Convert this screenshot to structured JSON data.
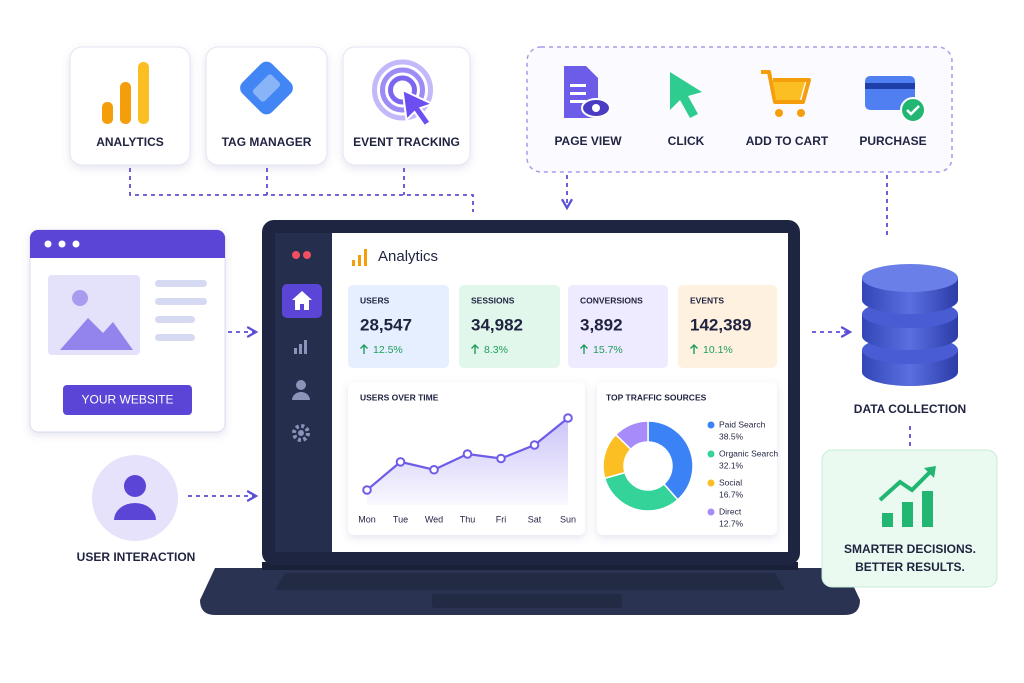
{
  "top_tools": [
    {
      "label": "ANALYTICS"
    },
    {
      "label": "TAG MANAGER"
    },
    {
      "label": "EVENT TRACKING"
    }
  ],
  "events": [
    {
      "label": "PAGE VIEW"
    },
    {
      "label": "CLICK"
    },
    {
      "label": "ADD TO CART"
    },
    {
      "label": "PURCHASE"
    }
  ],
  "website": {
    "button": "YOUR WEBSITE"
  },
  "user": {
    "label": "USER INTERACTION"
  },
  "dashboard": {
    "title": "Analytics",
    "kpis": [
      {
        "label": "USERS",
        "value": "28,547",
        "change": "12.5%"
      },
      {
        "label": "SESSIONS",
        "value": "34,982",
        "change": "8.3%"
      },
      {
        "label": "CONVERSIONS",
        "value": "3,892",
        "change": "15.7%"
      },
      {
        "label": "EVENTS",
        "value": "142,389",
        "change": "10.1%"
      }
    ],
    "users_over_time": {
      "title": "USERS OVER TIME",
      "days": [
        "Mon",
        "Tue",
        "Wed",
        "Thu",
        "Fri",
        "Sat",
        "Sun"
      ],
      "values": [
        20,
        45,
        38,
        52,
        48,
        60,
        84
      ],
      "color": "#6d5ce8"
    },
    "traffic_sources": {
      "title": "TOP TRAFFIC SOURCES",
      "names": [
        "Paid Search",
        "Organic Search",
        "Social",
        "Direct"
      ],
      "values": [
        38.5,
        32.1,
        16.7,
        12.7
      ],
      "value_labels": [
        "38.5%",
        "32.1%",
        "16.7%",
        "12.7%"
      ],
      "colors": [
        "#3b82f6",
        "#34d399",
        "#fbbf24",
        "#a78bfa"
      ]
    }
  },
  "data_collection": {
    "label": "DATA COLLECTION"
  },
  "outcome": {
    "lines": [
      "SMARTER DECISIONS.",
      "BETTER RESULTS."
    ]
  }
}
